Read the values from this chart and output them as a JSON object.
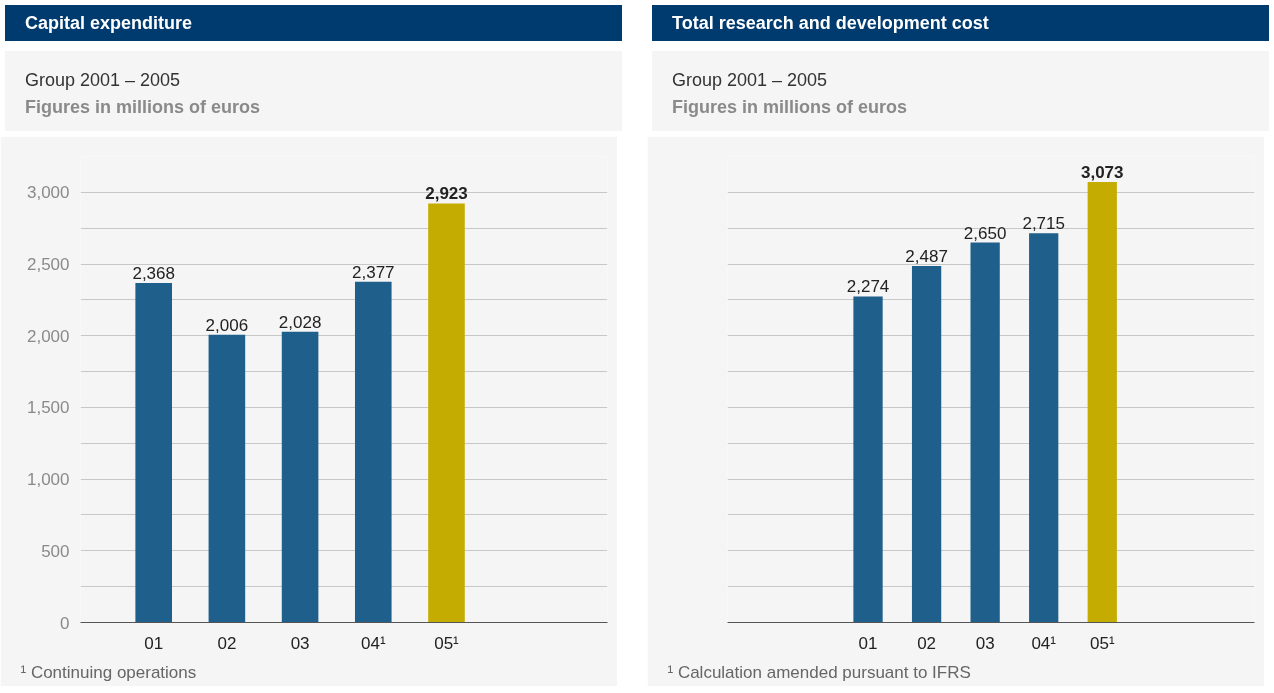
{
  "chart_data": [
    {
      "type": "bar",
      "title": "Capital expenditure",
      "subtitle": "Group 2001 – 2005\nFigures in millions of euros",
      "categories": [
        "01",
        "02",
        "03",
        "04¹",
        "05¹"
      ],
      "values": [
        2368,
        2006,
        2028,
        2377,
        2923
      ],
      "value_labels": [
        "2,368",
        "2,006",
        "2,028",
        "2,377",
        "2,923"
      ],
      "colors": [
        "#1f5f8b",
        "#1f5f8b",
        "#1f5f8b",
        "#1f5f8b",
        "#c4ac00"
      ],
      "ylim": [
        0,
        3250
      ],
      "yticks": [
        0,
        {
          "value": 250,
          "label": null
        },
        500,
        {
          "value": 750,
          "label": null
        },
        {
          "value": 1000,
          "label": "1,000"
        },
        {
          "value": 1250,
          "label": null
        },
        {
          "value": 1500,
          "label": "1,500"
        },
        {
          "value": 1750,
          "label": null
        },
        {
          "value": 2000,
          "label": "2,000"
        },
        {
          "value": 2250,
          "label": null
        },
        {
          "value": 2500,
          "label": "2,500"
        },
        {
          "value": 2750,
          "label": null
        },
        {
          "value": 3000,
          "label": "3,000"
        }
      ],
      "grid": "y",
      "annotations": [
        "¹ Continuing operations"
      ]
    },
    {
      "type": "bar",
      "title": "Total research and development cost",
      "subtitle": "Group 2001 – 2005\nFigures in millions of euros",
      "categories": [
        "01",
        "02",
        "03",
        "04¹",
        "05¹"
      ],
      "values": [
        2274,
        2487,
        2650,
        2715,
        3073
      ],
      "value_labels": [
        "2,274",
        "2,487",
        "2,650",
        "2,715",
        "3,073"
      ],
      "colors": [
        "#1f5f8b",
        "#1f5f8b",
        "#1f5f8b",
        "#1f5f8b",
        "#c4ac00"
      ],
      "ylim": [
        0,
        3250
      ],
      "yticks": [
        {
          "value": 0,
          "label": null
        },
        {
          "value": 250,
          "label": null
        },
        {
          "value": 500,
          "label": null
        },
        {
          "value": 750,
          "label": null
        },
        {
          "value": 1000,
          "label": null
        },
        {
          "value": 1250,
          "label": null
        },
        {
          "value": 1500,
          "label": null
        },
        {
          "value": 1750,
          "label": null
        },
        {
          "value": 2000,
          "label": null
        },
        {
          "value": 2250,
          "label": null
        },
        {
          "value": 2500,
          "label": null
        },
        {
          "value": 2750,
          "label": null
        },
        {
          "value": 3000,
          "label": null
        }
      ],
      "grid": "y",
      "tick_labels": "x",
      "annotations": [
        "¹ Calculation amended pursuant to IFRS"
      ]
    }
  ]
}
